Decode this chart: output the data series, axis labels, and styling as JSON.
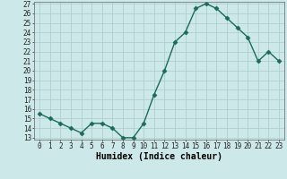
{
  "x": [
    0,
    1,
    2,
    3,
    4,
    5,
    6,
    7,
    8,
    9,
    10,
    11,
    12,
    13,
    14,
    15,
    16,
    17,
    18,
    19,
    20,
    21,
    22,
    23
  ],
  "y": [
    15.5,
    15.0,
    14.5,
    14.0,
    13.5,
    14.5,
    14.5,
    14.0,
    13.0,
    13.0,
    14.5,
    17.5,
    20.0,
    23.0,
    24.0,
    26.5,
    27.0,
    26.5,
    25.5,
    24.5,
    23.5,
    21.0,
    22.0,
    21.0
  ],
  "xlabel": "Humidex (Indice chaleur)",
  "line_color": "#1a6b5a",
  "marker_color": "#1a6b5a",
  "bg_color": "#cce8e8",
  "grid_color": "#aacccc",
  "ylim_min": 13,
  "ylim_max": 27,
  "xlim_min": -0.5,
  "xlim_max": 23.5,
  "yticks": [
    13,
    14,
    15,
    16,
    17,
    18,
    19,
    20,
    21,
    22,
    23,
    24,
    25,
    26,
    27
  ],
  "xticks": [
    0,
    1,
    2,
    3,
    4,
    5,
    6,
    7,
    8,
    9,
    10,
    11,
    12,
    13,
    14,
    15,
    16,
    17,
    18,
    19,
    20,
    21,
    22,
    23
  ],
  "tick_fontsize": 5.5,
  "xlabel_fontsize": 7,
  "line_width": 1.0,
  "marker_size": 2.5
}
